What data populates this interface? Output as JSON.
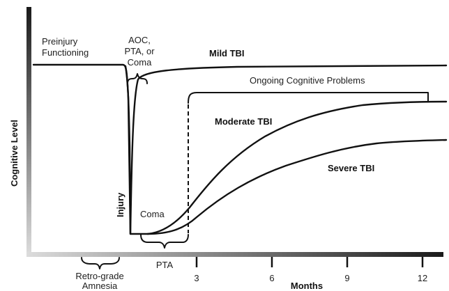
{
  "diagram": {
    "labels": {
      "preinjury_line1": "Preinjury",
      "preinjury_line2": "Functioning",
      "aoc_line1": "AOC,",
      "aoc_line2": "PTA, or",
      "aoc_line3": "Coma",
      "mild": "Mild TBI",
      "ongoing": "Ongoing Cognitive Problems",
      "moderate": "Moderate TBI",
      "severe": "Severe TBI",
      "injury": "Injury",
      "coma": "Coma",
      "pta": "PTA",
      "retro_line1": "Retro-grade",
      "retro_line2": "Amnesia"
    },
    "axes": {
      "y_label": "Cognitive Level",
      "x_label": "Months",
      "x_ticks": [
        "3",
        "6",
        "9",
        "12"
      ]
    },
    "colors": {
      "line": "#111111",
      "axis_gradient_dark": "#1a1a1a",
      "axis_gradient_light": "#dcdcdc",
      "text": "#1e1e1e"
    }
  }
}
